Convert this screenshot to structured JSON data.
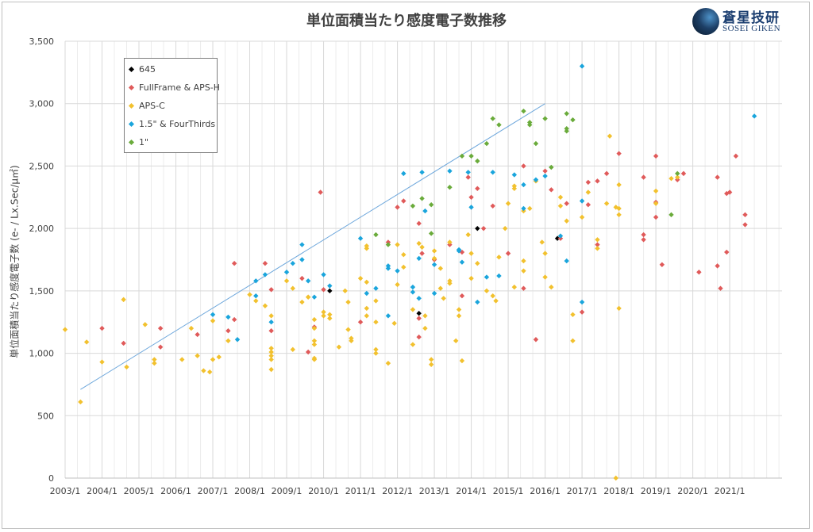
{
  "chart_data": {
    "type": "scatter",
    "title": "単位面積当たり感度電子数推移",
    "ylabel": "単位面積当たり感度電子数 (e- / Lx.Sec/μ㎡)",
    "xlabel": "",
    "xlim": [
      "2003-01",
      "2022-06"
    ],
    "ylim": [
      0,
      3500
    ],
    "x_ticks": [
      "2003/1",
      "2004/1",
      "2005/1",
      "2006/1",
      "2007/1",
      "2008/1",
      "2009/1",
      "2010/1",
      "2011/1",
      "2012/1",
      "2013/1",
      "2014/1",
      "2015/1",
      "2016/1",
      "2017/1",
      "2018/1",
      "2019/1",
      "2020/1",
      "2021/1"
    ],
    "y_ticks": [
      "0",
      "500",
      "1,000",
      "1,500",
      "2,000",
      "2,500",
      "3,000",
      "3,500"
    ],
    "grid": true,
    "legend_position": "top-left",
    "trend_line": {
      "x": [
        "2003-06",
        "2016-01"
      ],
      "y": [
        710,
        3000
      ]
    },
    "series": [
      {
        "name": "645",
        "color": "#000000",
        "points": [
          [
            "2010-03",
            1500
          ],
          [
            "2012-08",
            1320
          ],
          [
            "2014-03",
            2000
          ],
          [
            "2016-05",
            1920
          ]
        ]
      },
      {
        "name": "FullFrame & APS-H",
        "color": "#e05a5a",
        "points": [
          [
            "2004-01",
            1200
          ],
          [
            "2004-08",
            1080
          ],
          [
            "2005-08",
            1200
          ],
          [
            "2005-08",
            1050
          ],
          [
            "2006-08",
            1150
          ],
          [
            "2007-08",
            1720
          ],
          [
            "2007-08",
            1270
          ],
          [
            "2007-06",
            1180
          ],
          [
            "2008-06",
            1720
          ],
          [
            "2008-08",
            1510
          ],
          [
            "2008-08",
            1180
          ],
          [
            "2009-06",
            1600
          ],
          [
            "2009-10",
            1210
          ],
          [
            "2009-12",
            2290
          ],
          [
            "2009-08",
            1010
          ],
          [
            "2010-01",
            1510
          ],
          [
            "2011-01",
            1250
          ],
          [
            "2011-10",
            1890
          ],
          [
            "2012-01",
            2170
          ],
          [
            "2012-03",
            2220
          ],
          [
            "2012-08",
            2040
          ],
          [
            "2012-09",
            1800
          ],
          [
            "2012-08",
            1280
          ],
          [
            "2012-08",
            1130
          ],
          [
            "2013-01",
            1750
          ],
          [
            "2013-06",
            1870
          ],
          [
            "2013-10",
            1810
          ],
          [
            "2013-10",
            1460
          ],
          [
            "2013-12",
            2410
          ],
          [
            "2014-01",
            2250
          ],
          [
            "2014-03",
            2320
          ],
          [
            "2014-05",
            2000
          ],
          [
            "2014-08",
            2180
          ],
          [
            "2015-01",
            1800
          ],
          [
            "2015-06",
            2500
          ],
          [
            "2015-06",
            1520
          ],
          [
            "2015-10",
            1110
          ],
          [
            "2016-01",
            2460
          ],
          [
            "2016-03",
            2310
          ],
          [
            "2016-08",
            2200
          ],
          [
            "2016-06",
            1920
          ],
          [
            "2017-01",
            1330
          ],
          [
            "2017-03",
            2370
          ],
          [
            "2017-03",
            2190
          ],
          [
            "2017-06",
            2380
          ],
          [
            "2017-06",
            1870
          ],
          [
            "2017-09",
            2440
          ],
          [
            "2018-01",
            2600
          ],
          [
            "2018-09",
            2410
          ],
          [
            "2018-09",
            1950
          ],
          [
            "2018-09",
            1910
          ],
          [
            "2019-01",
            2580
          ],
          [
            "2019-01",
            2210
          ],
          [
            "2019-01",
            2090
          ],
          [
            "2019-03",
            1710
          ],
          [
            "2019-08",
            2390
          ],
          [
            "2019-10",
            2440
          ],
          [
            "2020-03",
            1650
          ],
          [
            "2020-09",
            2410
          ],
          [
            "2020-09",
            1700
          ],
          [
            "2020-10",
            1520
          ],
          [
            "2020-12",
            2280
          ],
          [
            "2021-01",
            2290
          ],
          [
            "2020-12",
            1810
          ],
          [
            "2021-03",
            2580
          ],
          [
            "2021-06",
            2110
          ],
          [
            "2021-06",
            2030
          ]
        ]
      },
      {
        "name": "APS-C",
        "color": "#f2c12e",
        "points": [
          [
            "2003-01",
            1190
          ],
          [
            "2003-06",
            610
          ],
          [
            "2003-08",
            1090
          ],
          [
            "2004-01",
            930
          ],
          [
            "2004-08",
            1430
          ],
          [
            "2004-09",
            890
          ],
          [
            "2005-03",
            1230
          ],
          [
            "2005-06",
            950
          ],
          [
            "2005-06",
            920
          ],
          [
            "2006-03",
            950
          ],
          [
            "2006-06",
            1200
          ],
          [
            "2006-08",
            980
          ],
          [
            "2006-10",
            860
          ],
          [
            "2006-12",
            850
          ],
          [
            "2007-01",
            950
          ],
          [
            "2007-03",
            970
          ],
          [
            "2007-01",
            1260
          ],
          [
            "2007-06",
            1100
          ],
          [
            "2008-01",
            1470
          ],
          [
            "2008-03",
            1420
          ],
          [
            "2008-06",
            1380
          ],
          [
            "2008-08",
            1300
          ],
          [
            "2008-08",
            1040
          ],
          [
            "2008-08",
            1010
          ],
          [
            "2008-08",
            980
          ],
          [
            "2008-08",
            950
          ],
          [
            "2008-08",
            870
          ],
          [
            "2009-01",
            1580
          ],
          [
            "2009-03",
            1520
          ],
          [
            "2009-03",
            1030
          ],
          [
            "2009-06",
            1410
          ],
          [
            "2009-08",
            1450
          ],
          [
            "2009-08",
            1450
          ],
          [
            "2009-10",
            1270
          ],
          [
            "2009-10",
            1200
          ],
          [
            "2009-10",
            1100
          ],
          [
            "2009-10",
            1070
          ],
          [
            "2009-10",
            960
          ],
          [
            "2009-10",
            950
          ],
          [
            "2010-01",
            1300
          ],
          [
            "2010-01",
            1330
          ],
          [
            "2010-03",
            1310
          ],
          [
            "2010-03",
            1280
          ],
          [
            "2010-06",
            1050
          ],
          [
            "2010-08",
            1500
          ],
          [
            "2010-09",
            1410
          ],
          [
            "2010-09",
            1190
          ],
          [
            "2010-10",
            1120
          ],
          [
            "2010-10",
            1100
          ],
          [
            "2011-01",
            1600
          ],
          [
            "2011-03",
            1570
          ],
          [
            "2011-03",
            1860
          ],
          [
            "2011-03",
            1840
          ],
          [
            "2011-03",
            1360
          ],
          [
            "2011-03",
            1300
          ],
          [
            "2011-06",
            1420
          ],
          [
            "2011-06",
            1250
          ],
          [
            "2011-06",
            1000
          ],
          [
            "2011-06",
            1030
          ],
          [
            "2011-10",
            920
          ],
          [
            "2011-12",
            1240
          ],
          [
            "2012-01",
            1870
          ],
          [
            "2012-01",
            1550
          ],
          [
            "2012-03",
            1790
          ],
          [
            "2012-03",
            1690
          ],
          [
            "2012-06",
            1350
          ],
          [
            "2012-06",
            1070
          ],
          [
            "2012-08",
            1880
          ],
          [
            "2012-09",
            1850
          ],
          [
            "2012-10",
            1300
          ],
          [
            "2012-10",
            1200
          ],
          [
            "2012-12",
            950
          ],
          [
            "2012-12",
            910
          ],
          [
            "2013-01",
            1820
          ],
          [
            "2013-01",
            1760
          ],
          [
            "2013-03",
            1680
          ],
          [
            "2013-03",
            1520
          ],
          [
            "2013-04",
            1440
          ],
          [
            "2013-06",
            1890
          ],
          [
            "2013-06",
            1560
          ],
          [
            "2013-06",
            1580
          ],
          [
            "2013-08",
            1100
          ],
          [
            "2013-09",
            1350
          ],
          [
            "2013-09",
            1300
          ],
          [
            "2013-10",
            940
          ],
          [
            "2013-12",
            1950
          ],
          [
            "2014-01",
            1800
          ],
          [
            "2014-01",
            1600
          ],
          [
            "2014-03",
            1720
          ],
          [
            "2014-06",
            1500
          ],
          [
            "2014-08",
            1460
          ],
          [
            "2014-09",
            1420
          ],
          [
            "2014-10",
            1770
          ],
          [
            "2014-12",
            2000
          ],
          [
            "2015-01",
            2200
          ],
          [
            "2015-03",
            1530
          ],
          [
            "2015-03",
            2340
          ],
          [
            "2015-03",
            2320
          ],
          [
            "2015-06",
            1740
          ],
          [
            "2015-06",
            2140
          ],
          [
            "2015-06",
            1660
          ],
          [
            "2015-08",
            2160
          ],
          [
            "2015-10",
            2380
          ],
          [
            "2015-12",
            1890
          ],
          [
            "2016-01",
            1800
          ],
          [
            "2016-01",
            1610
          ],
          [
            "2016-03",
            1530
          ],
          [
            "2016-06",
            2250
          ],
          [
            "2016-06",
            2180
          ],
          [
            "2016-08",
            2060
          ],
          [
            "2016-10",
            1310
          ],
          [
            "2016-10",
            1100
          ],
          [
            "2017-01",
            2090
          ],
          [
            "2017-03",
            2290
          ],
          [
            "2017-06",
            1910
          ],
          [
            "2017-06",
            1840
          ],
          [
            "2017-09",
            2200
          ],
          [
            "2017-10",
            2740
          ],
          [
            "2017-12",
            2170
          ],
          [
            "2018-01",
            2160
          ],
          [
            "2018-01",
            1360
          ],
          [
            "2018-01",
            2350
          ],
          [
            "2018-01",
            2110
          ],
          [
            "2019-01",
            2300
          ],
          [
            "2019-01",
            2200
          ],
          [
            "2019-06",
            2400
          ],
          [
            "2019-08",
            2410
          ],
          [
            "2017-12",
            0
          ]
        ]
      },
      {
        "name": "1.5\" & FourThirds",
        "color": "#1aa5dc",
        "points": [
          [
            "2007-01",
            1310
          ],
          [
            "2007-06",
            1290
          ],
          [
            "2007-09",
            1110
          ],
          [
            "2008-03",
            1580
          ],
          [
            "2008-03",
            1460
          ],
          [
            "2008-06",
            1630
          ],
          [
            "2008-08",
            1250
          ],
          [
            "2009-01",
            1650
          ],
          [
            "2009-03",
            1720
          ],
          [
            "2009-06",
            1750
          ],
          [
            "2009-06",
            1870
          ],
          [
            "2009-08",
            1580
          ],
          [
            "2009-10",
            1450
          ],
          [
            "2010-01",
            1630
          ],
          [
            "2010-03",
            1540
          ],
          [
            "2011-01",
            1920
          ],
          [
            "2011-03",
            1480
          ],
          [
            "2011-06",
            1520
          ],
          [
            "2011-10",
            1700
          ],
          [
            "2011-10",
            1680
          ],
          [
            "2011-10",
            1300
          ],
          [
            "2012-01",
            1660
          ],
          [
            "2012-03",
            2440
          ],
          [
            "2012-06",
            1530
          ],
          [
            "2012-06",
            1490
          ],
          [
            "2012-08",
            1440
          ],
          [
            "2012-08",
            1760
          ],
          [
            "2012-09",
            2450
          ],
          [
            "2012-10",
            2140
          ],
          [
            "2013-01",
            1710
          ],
          [
            "2013-01",
            1480
          ],
          [
            "2013-06",
            2460
          ],
          [
            "2013-09",
            1820
          ],
          [
            "2013-09",
            1830
          ],
          [
            "2013-10",
            1730
          ],
          [
            "2013-12",
            2450
          ],
          [
            "2014-01",
            2170
          ],
          [
            "2014-03",
            1410
          ],
          [
            "2014-06",
            1610
          ],
          [
            "2014-08",
            2450
          ],
          [
            "2014-10",
            1620
          ],
          [
            "2015-03",
            2430
          ],
          [
            "2015-06",
            2160
          ],
          [
            "2015-06",
            2350
          ],
          [
            "2015-10",
            2390
          ],
          [
            "2016-01",
            2420
          ],
          [
            "2016-06",
            1940
          ],
          [
            "2016-08",
            1740
          ],
          [
            "2017-01",
            2220
          ],
          [
            "2017-01",
            1410
          ],
          [
            "2017-01",
            3300
          ],
          [
            "2021-09",
            2900
          ]
        ]
      },
      {
        "name": "1\"",
        "color": "#6aab3b",
        "points": [
          [
            "2011-06",
            1950
          ],
          [
            "2011-10",
            1870
          ],
          [
            "2012-06",
            2180
          ],
          [
            "2012-09",
            2240
          ],
          [
            "2012-12",
            2190
          ],
          [
            "2012-12",
            1960
          ],
          [
            "2013-06",
            2330
          ],
          [
            "2013-10",
            2580
          ],
          [
            "2014-01",
            2580
          ],
          [
            "2014-03",
            2540
          ],
          [
            "2014-06",
            2680
          ],
          [
            "2014-08",
            2880
          ],
          [
            "2014-10",
            2830
          ],
          [
            "2015-06",
            2940
          ],
          [
            "2015-08",
            2850
          ],
          [
            "2015-08",
            2830
          ],
          [
            "2015-10",
            2680
          ],
          [
            "2016-01",
            2880
          ],
          [
            "2016-03",
            2490
          ],
          [
            "2016-08",
            2800
          ],
          [
            "2016-08",
            2780
          ],
          [
            "2016-08",
            2920
          ],
          [
            "2016-10",
            2870
          ],
          [
            "2019-06",
            2110
          ],
          [
            "2019-08",
            2440
          ]
        ]
      }
    ]
  },
  "logo": {
    "name": "蒼星技研",
    "sub": "SOSEI GIKEN"
  }
}
